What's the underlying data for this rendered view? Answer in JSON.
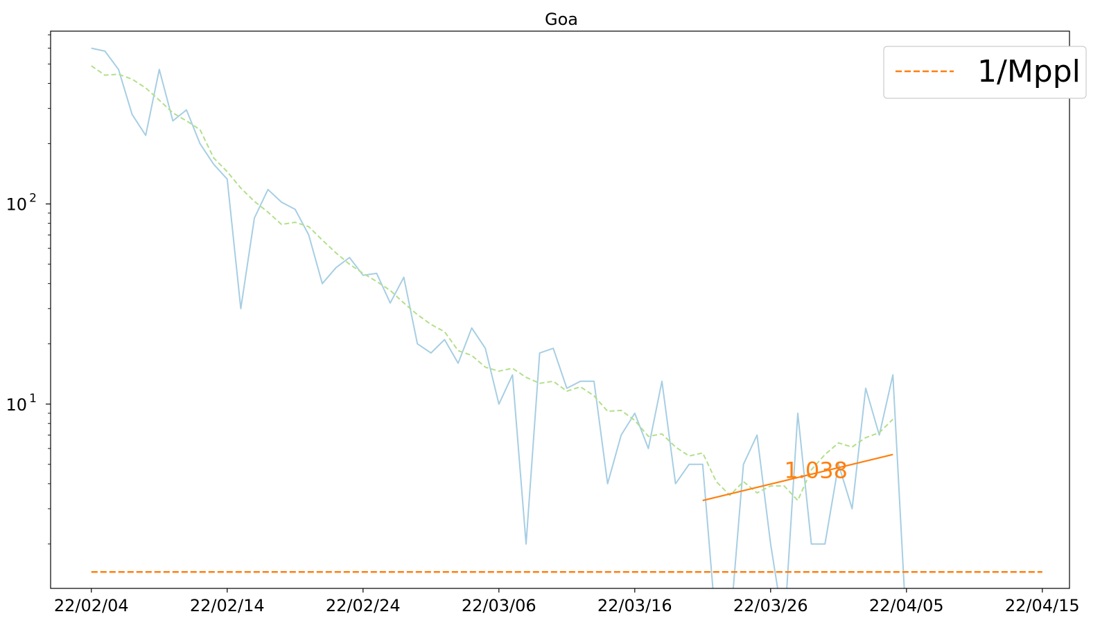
{
  "chart_data": {
    "type": "line",
    "title": "Goa",
    "xlabel": "",
    "ylabel": "",
    "yscale": "log",
    "grid": false,
    "legend_position": "top-right",
    "x_ticks": [
      "22/02/04",
      "22/02/14",
      "22/02/24",
      "22/03/06",
      "22/03/16",
      "22/03/26",
      "22/04/05",
      "22/04/15"
    ],
    "y_ticks": [
      {
        "value": 100,
        "base": "10",
        "exp": "2"
      },
      {
        "value": 10,
        "base": "10",
        "exp": "1"
      }
    ],
    "xlim": [
      "2022-02-01",
      "2022-04-17"
    ],
    "ylim": [
      1.2,
      730
    ],
    "series": [
      {
        "color": "#a6cee3",
        "style": "solid",
        "points": [
          [
            "2022-02-04",
            600
          ],
          [
            "2022-02-05",
            580
          ],
          [
            "2022-02-06",
            470
          ],
          [
            "2022-02-07",
            280
          ],
          [
            "2022-02-08",
            220
          ],
          [
            "2022-02-09",
            470
          ],
          [
            "2022-02-10",
            260
          ],
          [
            "2022-02-11",
            295
          ],
          [
            "2022-02-12",
            200
          ],
          [
            "2022-02-13",
            158
          ],
          [
            "2022-02-14",
            133
          ],
          [
            "2022-02-15",
            30
          ],
          [
            "2022-02-16",
            85
          ],
          [
            "2022-02-17",
            118
          ],
          [
            "2022-02-18",
            102
          ],
          [
            "2022-02-19",
            94
          ],
          [
            "2022-02-20",
            70
          ],
          [
            "2022-02-21",
            40
          ],
          [
            "2022-02-22",
            48
          ],
          [
            "2022-02-23",
            54
          ],
          [
            "2022-02-24",
            44
          ],
          [
            "2022-02-25",
            45
          ],
          [
            "2022-02-26",
            32
          ],
          [
            "2022-02-27",
            43
          ],
          [
            "2022-02-28",
            20
          ],
          [
            "2022-03-01",
            18
          ],
          [
            "2022-03-02",
            21
          ],
          [
            "2022-03-03",
            16
          ],
          [
            "2022-03-04",
            24
          ],
          [
            "2022-03-05",
            19
          ],
          [
            "2022-03-06",
            10
          ],
          [
            "2022-03-07",
            14
          ],
          [
            "2022-03-08",
            2
          ],
          [
            "2022-03-09",
            18
          ],
          [
            "2022-03-10",
            19
          ],
          [
            "2022-03-11",
            12
          ],
          [
            "2022-03-12",
            13
          ],
          [
            "2022-03-13",
            13
          ],
          [
            "2022-03-14",
            4
          ],
          [
            "2022-03-15",
            7
          ],
          [
            "2022-03-16",
            9
          ],
          [
            "2022-03-17",
            6
          ],
          [
            "2022-03-18",
            13
          ],
          [
            "2022-03-19",
            4
          ],
          [
            "2022-03-20",
            5
          ],
          [
            "2022-03-21",
            5
          ],
          [
            "2022-03-22",
            0.5
          ],
          [
            "2022-03-23",
            0.5
          ],
          [
            "2022-03-24",
            5
          ],
          [
            "2022-03-25",
            7
          ],
          [
            "2022-03-26",
            2
          ],
          [
            "2022-03-27",
            0.5
          ],
          [
            "2022-03-28",
            9
          ],
          [
            "2022-03-29",
            2
          ],
          [
            "2022-03-30",
            2
          ],
          [
            "2022-03-31",
            5
          ],
          [
            "2022-04-01",
            3
          ],
          [
            "2022-04-02",
            12
          ],
          [
            "2022-04-03",
            7
          ],
          [
            "2022-04-04",
            14
          ],
          [
            "2022-04-05",
            0.5
          ]
        ]
      },
      {
        "color": "#b2df8a",
        "style": "dashed",
        "points": [
          [
            "2022-02-04",
            490
          ],
          [
            "2022-02-05",
            440
          ],
          [
            "2022-02-06",
            445
          ],
          [
            "2022-02-07",
            420
          ],
          [
            "2022-02-08",
            380
          ],
          [
            "2022-02-09",
            330
          ],
          [
            "2022-02-10",
            285
          ],
          [
            "2022-02-11",
            260
          ],
          [
            "2022-02-12",
            235
          ],
          [
            "2022-02-13",
            170
          ],
          [
            "2022-02-14",
            145
          ],
          [
            "2022-02-15",
            120
          ],
          [
            "2022-02-16",
            103
          ],
          [
            "2022-02-17",
            91
          ],
          [
            "2022-02-18",
            79
          ],
          [
            "2022-02-19",
            81
          ],
          [
            "2022-02-20",
            77
          ],
          [
            "2022-02-21",
            66
          ],
          [
            "2022-02-22",
            57
          ],
          [
            "2022-02-23",
            50
          ],
          [
            "2022-02-24",
            45
          ],
          [
            "2022-02-25",
            41
          ],
          [
            "2022-02-26",
            37
          ],
          [
            "2022-02-27",
            32
          ],
          [
            "2022-02-28",
            28
          ],
          [
            "2022-03-01",
            25
          ],
          [
            "2022-03-02",
            23
          ],
          [
            "2022-03-03",
            18.5
          ],
          [
            "2022-03-04",
            17.5
          ],
          [
            "2022-03-05",
            15.3
          ],
          [
            "2022-03-06",
            14.6
          ],
          [
            "2022-03-07",
            15.1
          ],
          [
            "2022-03-08",
            13.6
          ],
          [
            "2022-03-09",
            12.7
          ],
          [
            "2022-03-10",
            13
          ],
          [
            "2022-03-11",
            11.6
          ],
          [
            "2022-03-12",
            12.2
          ],
          [
            "2022-03-13",
            11
          ],
          [
            "2022-03-14",
            9.2
          ],
          [
            "2022-03-15",
            9.3
          ],
          [
            "2022-03-16",
            8.3
          ],
          [
            "2022-03-17",
            6.9
          ],
          [
            "2022-03-18",
            7.1
          ],
          [
            "2022-03-19",
            6.1
          ],
          [
            "2022-03-20",
            5.5
          ],
          [
            "2022-03-21",
            5.7
          ],
          [
            "2022-03-22",
            4.1
          ],
          [
            "2022-03-23",
            3.5
          ],
          [
            "2022-03-24",
            4.1
          ],
          [
            "2022-03-25",
            3.6
          ],
          [
            "2022-03-26",
            3.9
          ],
          [
            "2022-03-27",
            3.9
          ],
          [
            "2022-03-28",
            3.3
          ],
          [
            "2022-03-29",
            4.7
          ],
          [
            "2022-03-30",
            5.6
          ],
          [
            "2022-03-31",
            6.4
          ],
          [
            "2022-04-01",
            6.1
          ],
          [
            "2022-04-02",
            6.8
          ],
          [
            "2022-04-03",
            7.2
          ],
          [
            "2022-04-04",
            8.4
          ]
        ]
      },
      {
        "color": "#ff7f0e",
        "style": "solid",
        "points": [
          [
            "2022-03-21",
            3.3
          ],
          [
            "2022-04-04",
            5.6
          ]
        ]
      },
      {
        "name": "1/Mppl",
        "color": "#ff7f0e",
        "style": "dashed",
        "points": [
          [
            "2022-02-04",
            1.45
          ],
          [
            "2022-04-15",
            1.45
          ]
        ]
      }
    ],
    "annotations": [
      {
        "text": "1.038",
        "x": "2022-03-27",
        "y": 4.7,
        "color": "#ff7f0e"
      }
    ]
  }
}
